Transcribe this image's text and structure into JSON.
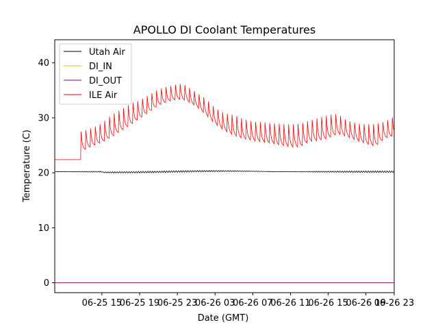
{
  "chart_data": {
    "type": "line",
    "title": "APOLLO DI Coolant Temperatures",
    "xlabel": "Date (GMT)",
    "ylabel": "Temperature (C)",
    "xlim": [
      0,
      36
    ],
    "ylim": [
      -1.8,
      44.2
    ],
    "x_ticks": [
      {
        "value": 5,
        "label": "06-25 15"
      },
      {
        "value": 9,
        "label": "06-25 19"
      },
      {
        "value": 13,
        "label": "06-25 23"
      },
      {
        "value": 17,
        "label": "06-26 03"
      },
      {
        "value": 21,
        "label": "06-26 07"
      },
      {
        "value": 25,
        "label": "06-26 11"
      },
      {
        "value": 29,
        "label": "06-26 15"
      },
      {
        "value": 33,
        "label": "06-26 19"
      },
      {
        "value": 37,
        "label": "06-26 23"
      }
    ],
    "y_ticks": [
      0,
      10,
      20,
      30,
      40
    ],
    "x_units_note": "hours since 06-25 10:00 GMT",
    "legend_position": "upper left",
    "series": [
      {
        "name": "Utah Air",
        "color": "#000000",
        "base": 20.2,
        "spikes": [],
        "note": "steady ~20.3 with small oscillation"
      },
      {
        "name": "DI_IN",
        "color": "#e6b800",
        "constant": 0.0
      },
      {
        "name": "DI_OUT",
        "color": "#800080",
        "constant": 0.0
      },
      {
        "name": "ILE Air",
        "color": "#ff0000",
        "x": [
          0,
          1.5,
          2.8,
          3.0,
          4.0,
          5.0,
          6.0,
          7.0,
          8.0,
          9.0,
          10.0,
          11.0,
          12.0,
          13.0,
          13.5,
          14.0,
          15.0,
          16.0,
          17.0,
          18.0,
          19.0,
          20.0,
          21.0,
          22.0,
          23.0,
          24.0,
          25.0,
          26.0,
          27.0,
          28.0,
          29.0,
          30.0,
          31.0,
          32.0,
          33.0,
          34.0,
          35.0,
          36.0
        ],
        "lower": [
          22.4,
          22.4,
          23.6,
          24.0,
          24.8,
          25.5,
          26.4,
          27.5,
          28.6,
          29.8,
          31.0,
          32.2,
          32.9,
          33.3,
          33.3,
          33.0,
          32.0,
          30.5,
          28.8,
          27.6,
          26.7,
          26.1,
          25.8,
          25.5,
          25.3,
          24.9,
          24.6,
          24.6,
          25.6,
          25.8,
          26.2,
          27.0,
          26.5,
          25.8,
          25.2,
          24.7,
          26.2,
          26.7
        ],
        "upper": [
          22.4,
          22.4,
          27.5,
          27.6,
          28.2,
          29.0,
          30.5,
          31.5,
          32.5,
          33.2,
          34.2,
          35.2,
          35.7,
          36.1,
          36.2,
          35.8,
          34.6,
          33.5,
          31.8,
          30.8,
          30.5,
          29.8,
          29.3,
          29.2,
          29.0,
          28.9,
          28.8,
          28.9,
          29.5,
          30.0,
          30.5,
          30.7,
          29.5,
          29.0,
          28.8,
          28.9,
          29.3,
          30.3
        ]
      }
    ]
  }
}
